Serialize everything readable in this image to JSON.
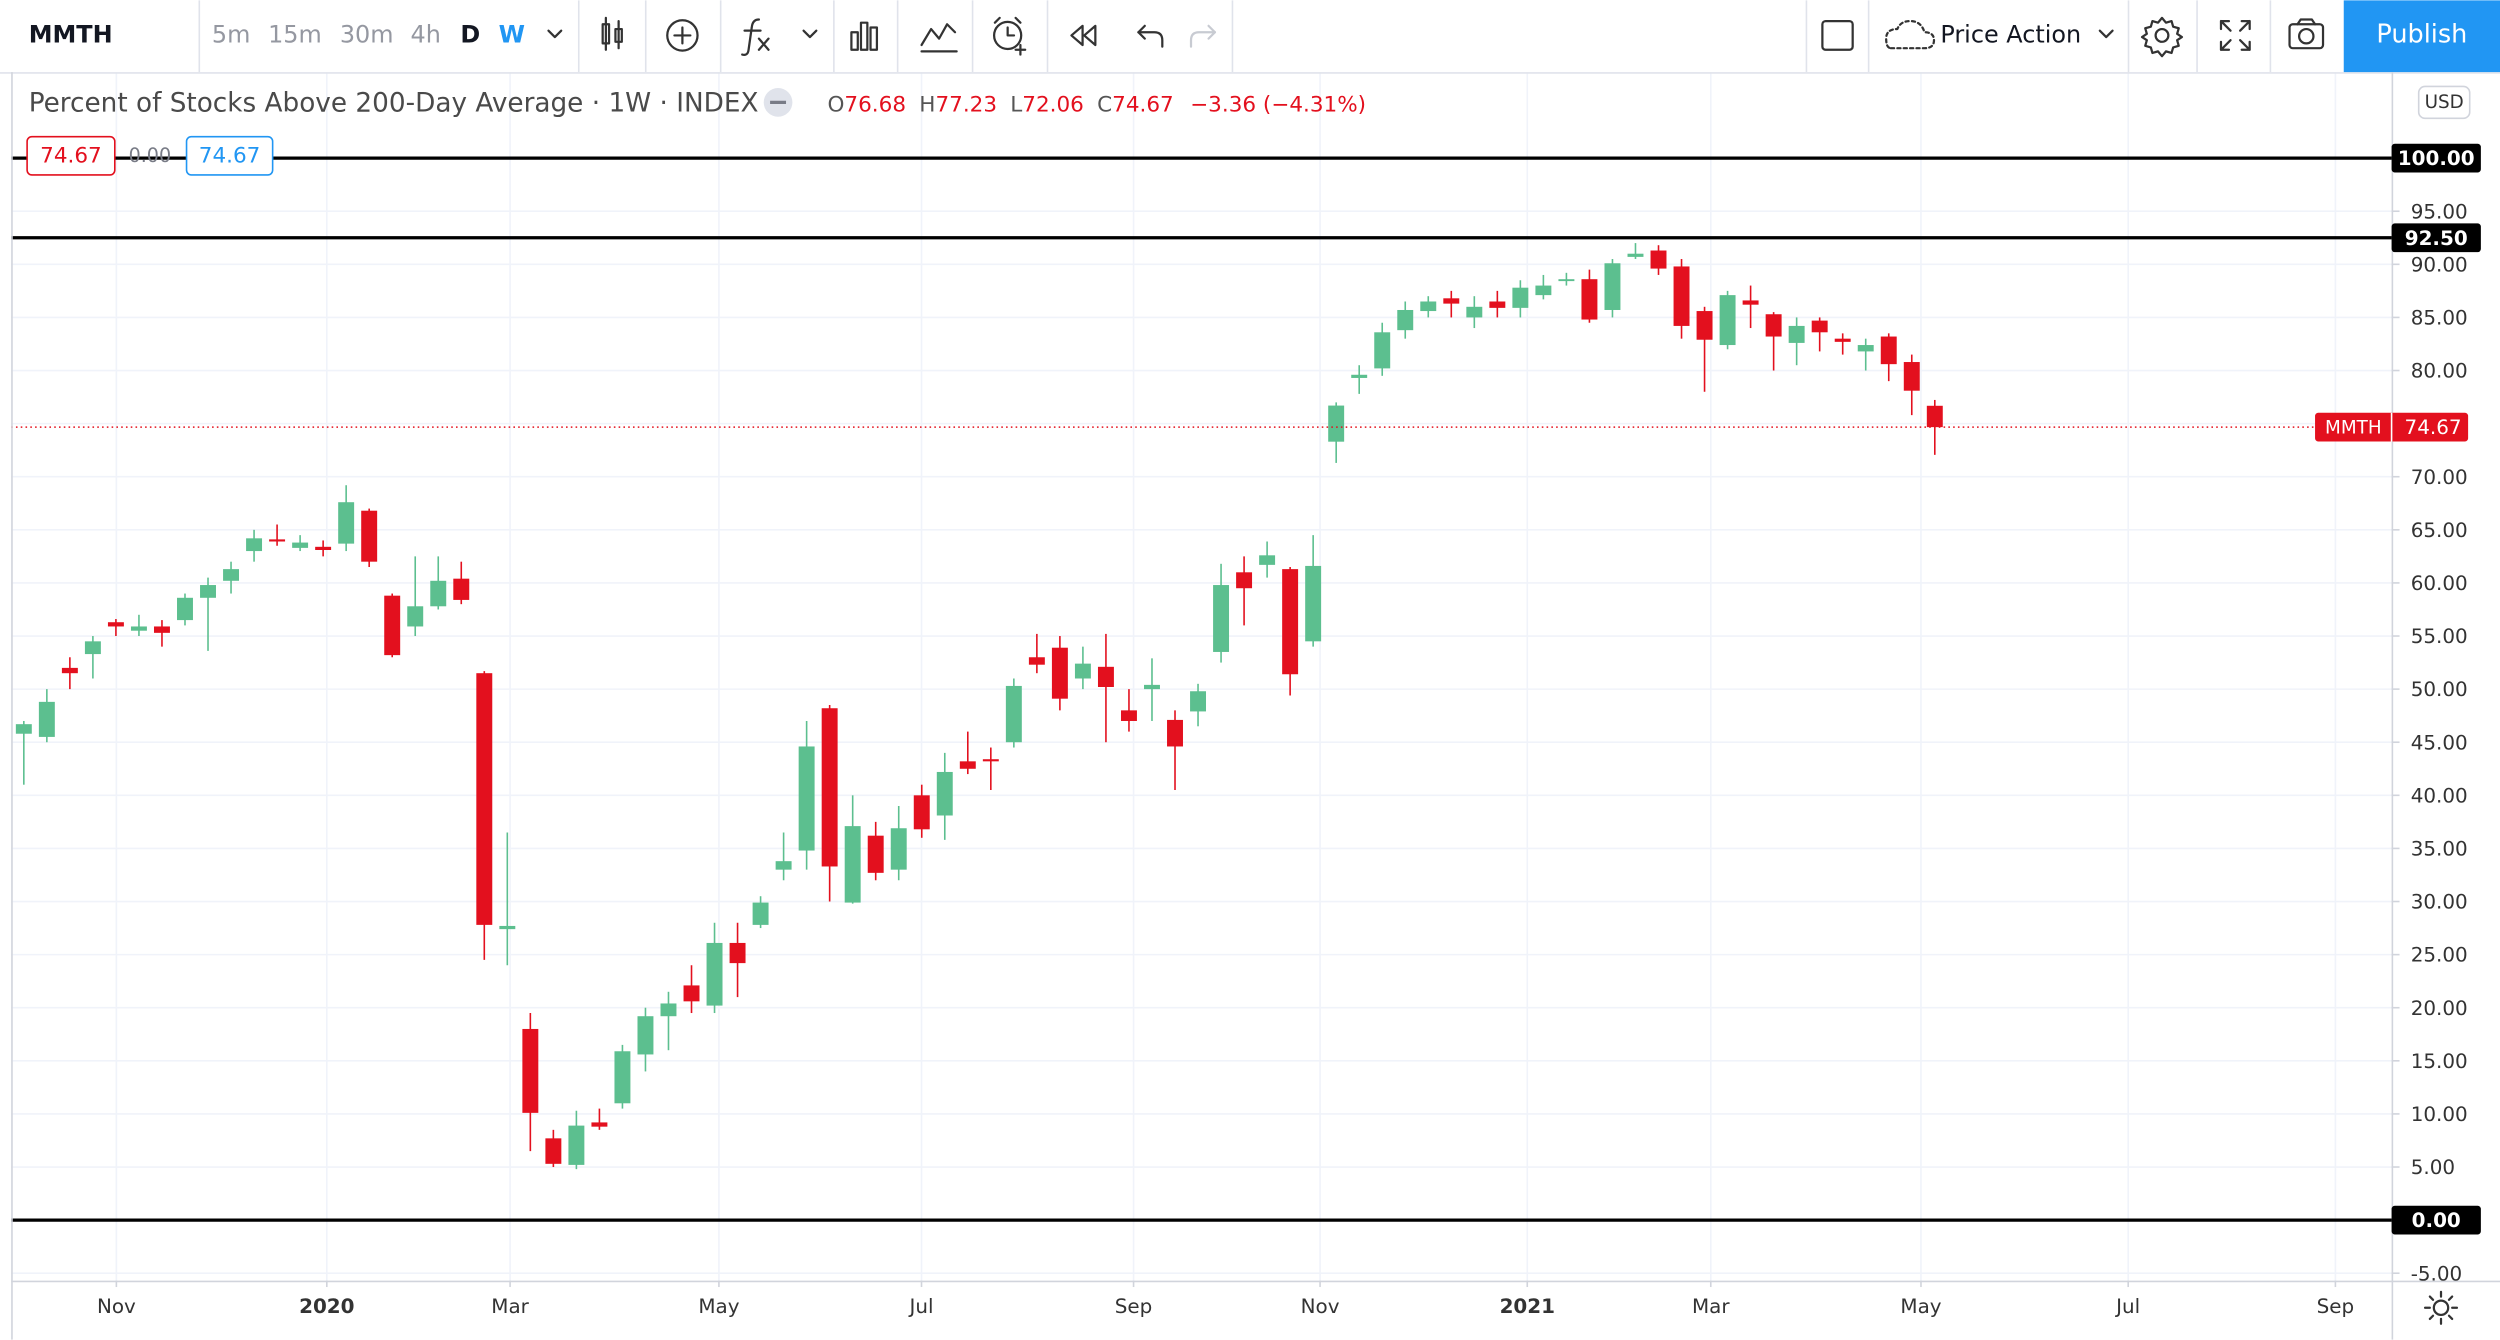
{
  "toolbar": {
    "symbol": "MMTH",
    "intervals": [
      "5m",
      "15m",
      "30m",
      "4h",
      "D",
      "W"
    ],
    "layout": "Price Action",
    "publish": "Publish"
  },
  "currency": "USD",
  "chart_data": {
    "type": "candlestick",
    "title": "Percent of Stocks Above 200-Day Average · 1W · INDEX",
    "ohlc_labels": [
      "O",
      "H",
      "L",
      "C"
    ],
    "change": "−3.36 (−4.31%)",
    "spread": "0.00",
    "x": [
      0,
      1,
      2,
      3,
      4,
      5,
      6,
      7,
      8,
      9,
      10,
      11,
      12,
      13,
      14,
      15,
      16,
      17,
      18,
      19,
      20,
      21,
      22,
      23,
      24,
      25,
      26,
      27,
      28,
      29,
      30,
      31,
      32,
      33,
      34,
      35,
      36,
      37,
      38,
      39,
      40,
      41,
      42,
      43,
      44,
      45,
      46,
      47,
      48,
      49,
      50,
      51,
      52,
      53,
      54,
      55,
      56,
      57,
      58,
      59,
      60,
      61,
      62,
      63,
      64,
      65,
      66,
      67,
      68,
      69,
      70,
      71,
      72,
      73,
      74,
      75,
      76,
      77,
      78,
      79,
      80,
      81,
      82,
      83
    ],
    "open": [
      45.8,
      45.5,
      52,
      53.3,
      56.3,
      55.5,
      55.9,
      56.5,
      58.6,
      60.2,
      63,
      64.1,
      63.3,
      63.4,
      63.7,
      66.8,
      58.8,
      55.9,
      57.8,
      60.4,
      51.5,
      27.4,
      18,
      7.7,
      5.2,
      9.2,
      11,
      15.6,
      19.2,
      22.1,
      20.2,
      26.1,
      27.8,
      33,
      34.8,
      48.2,
      29.9,
      36.2,
      33,
      40,
      38.1,
      43.2,
      43.4,
      45,
      53,
      53.9,
      51,
      52.1,
      48,
      50,
      47.1,
      47.9,
      53.5,
      61,
      61.7,
      61.3,
      54.5,
      73.3,
      79.3,
      80.2,
      83.8,
      85.6,
      86.8,
      85,
      86.5,
      85.9,
      87.1,
      88.5,
      88.6,
      85.7,
      90.7,
      91.3,
      89.8,
      85.6,
      82.4,
      86.6,
      85.3,
      82.6,
      84.7,
      83,
      81.8,
      83.2,
      80.8,
      76.68
    ],
    "high": [
      47,
      50,
      53,
      55,
      56.6,
      57,
      56.5,
      59,
      60.5,
      62,
      65,
      65.5,
      64.5,
      64,
      69.2,
      67,
      59,
      62.5,
      62.5,
      62,
      51.7,
      36.5,
      19.5,
      8.5,
      10.3,
      10.5,
      16.5,
      20,
      21.5,
      24,
      28,
      28,
      30.5,
      36.5,
      47,
      48.5,
      40,
      37.5,
      39,
      41,
      44,
      46,
      44.5,
      51,
      55.2,
      55,
      54,
      55.2,
      50,
      52.9,
      48,
      50.5,
      61.8,
      62.5,
      63.9,
      61.5,
      64.5,
      77,
      80.5,
      84.5,
      86.5,
      87,
      87.5,
      87,
      87.5,
      88.5,
      89,
      89.2,
      89.5,
      90.5,
      92,
      91.8,
      90.5,
      86,
      87.5,
      88,
      85.5,
      85,
      85,
      83.5,
      83,
      83.5,
      81.5,
      77.23
    ],
    "low": [
      41,
      45,
      50,
      51,
      55,
      55,
      54,
      56,
      53.6,
      59,
      62,
      63.5,
      63,
      62.5,
      63,
      61.5,
      53,
      55,
      57.5,
      58,
      24.5,
      24,
      6.5,
      5,
      4.8,
      8.5,
      10.5,
      14,
      16,
      19.5,
      19.5,
      21,
      27.5,
      32,
      33,
      30,
      29.8,
      32,
      32,
      36,
      35.8,
      42,
      40.5,
      44.5,
      51.5,
      48,
      50,
      45,
      46,
      47,
      40.5,
      46.5,
      52.5,
      56,
      60.5,
      49.4,
      54,
      71.3,
      77.8,
      79.5,
      83,
      85,
      85,
      84,
      85,
      85,
      86.7,
      88,
      84.5,
      85,
      90.5,
      89,
      83,
      78,
      82,
      84,
      80,
      80.5,
      81.8,
      81.5,
      80,
      79,
      75.8,
      72.06
    ],
    "close": [
      46.7,
      48.8,
      51.5,
      54.5,
      55.9,
      55.9,
      55.3,
      58.6,
      59.8,
      61.3,
      64.2,
      63.9,
      63.8,
      63.1,
      67.6,
      62,
      53.2,
      57.8,
      60.2,
      58.4,
      27.8,
      27.7,
      10.1,
      5.3,
      8.9,
      8.8,
      15.9,
      19.2,
      20.4,
      20.6,
      26.1,
      24.2,
      29.9,
      33.8,
      44.6,
      33.3,
      37.1,
      32.7,
      36.9,
      36.8,
      42.2,
      42.5,
      43.2,
      50.3,
      52.3,
      49.1,
      52.4,
      50.2,
      47,
      50.4,
      44.6,
      49.8,
      59.8,
      59.5,
      62.6,
      51.4,
      61.6,
      76.7,
      79.6,
      83.6,
      85.7,
      86.5,
      86.3,
      86,
      85.9,
      87.8,
      88,
      88.6,
      84.8,
      90.1,
      91,
      89.6,
      84.2,
      82.9,
      87.1,
      86.2,
      83.2,
      84.2,
      83.6,
      82.7,
      82.4,
      80.6,
      78.1,
      74.67
    ],
    "up_color": "#5cbf8f",
    "down_color": "#e3101e",
    "xlim": [
      -0.55,
      102.84
    ],
    "xticks": [
      {
        "value": 4.02,
        "label": "Nov"
      },
      {
        "value": 13.16,
        "label": "2020"
      },
      {
        "value": 21.12,
        "label": "Mar"
      },
      {
        "value": 30.19,
        "label": "May"
      },
      {
        "value": 38.99,
        "label": "Jul"
      },
      {
        "value": 48.2,
        "label": "Sep"
      },
      {
        "value": 56.3,
        "label": "Nov"
      },
      {
        "value": 65.3,
        "label": "2021"
      },
      {
        "value": 73.27,
        "label": "Mar"
      },
      {
        "value": 82.4,
        "label": "May"
      },
      {
        "value": 91.4,
        "label": "Jul"
      },
      {
        "value": 100.4,
        "label": "Sep"
      }
    ],
    "ylim": [
      -5.7,
      108.1
    ],
    "yticks": [
      {
        "value": 95,
        "label": "95.00"
      },
      {
        "value": 90,
        "label": "90.00"
      },
      {
        "value": 85,
        "label": "85.00"
      },
      {
        "value": 80,
        "label": "80.00"
      },
      {
        "value": 75,
        "label": "75.00"
      },
      {
        "value": 70,
        "label": "70.00"
      },
      {
        "value": 65,
        "label": "65.00"
      },
      {
        "value": 60,
        "label": "60.00"
      },
      {
        "value": 55,
        "label": "55.00"
      },
      {
        "value": 50,
        "label": "50.00"
      },
      {
        "value": 45,
        "label": "45.00"
      },
      {
        "value": 40,
        "label": "40.00"
      },
      {
        "value": 35,
        "label": "35.00"
      },
      {
        "value": 30,
        "label": "30.00"
      },
      {
        "value": 25,
        "label": "25.00"
      },
      {
        "value": 20,
        "label": "20.00"
      },
      {
        "value": 15,
        "label": "15.00"
      },
      {
        "value": 10,
        "label": "10.00"
      },
      {
        "value": 5,
        "label": "5.00"
      },
      {
        "value": -5,
        "label": "-5.00"
      }
    ],
    "hlines": [
      {
        "value": 100,
        "label": "100.00"
      },
      {
        "value": 92.5,
        "label": "92.50"
      },
      {
        "value": 0,
        "label": "0.00"
      }
    ],
    "grid": true
  }
}
